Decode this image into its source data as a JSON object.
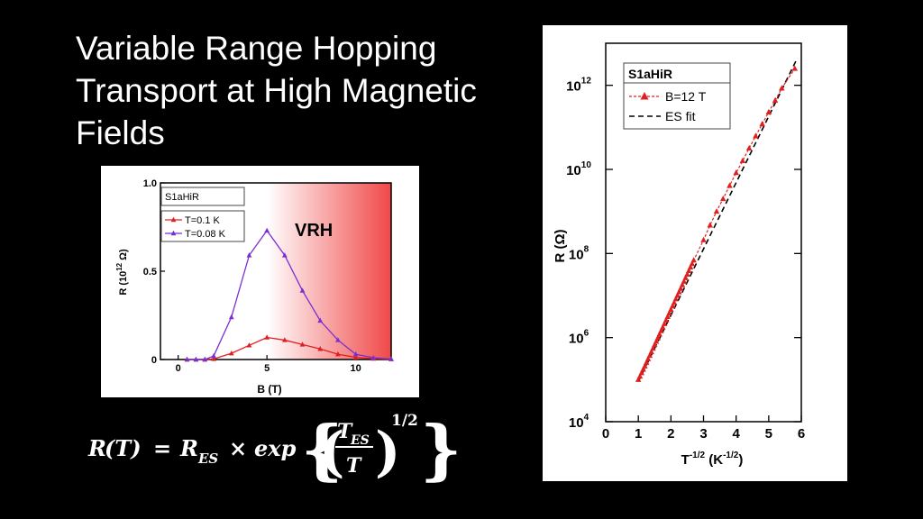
{
  "slide": {
    "title_lines": [
      "Variable Range Hopping",
      "Transport at High Magnetic",
      "Fields"
    ]
  },
  "formula": {
    "lhs_R": "R",
    "lhs_T": "(T)",
    "equals": "=",
    "R_ES": "R",
    "ES_sub": "ES",
    "times": "×",
    "exp": "exp",
    "T_num": "T",
    "T_num_sub": "ES",
    "T_den": "T",
    "exponent": "1/2",
    "lbrace": "{",
    "rbrace": "}",
    "lparen": "(",
    "rparen": ")"
  },
  "colors": {
    "red_series": "#e02020",
    "purple_series": "#7b2fd0",
    "vrh_shade": "#f04848",
    "fit_line": "#000000"
  },
  "chart_data": [
    {
      "type": "line",
      "sample_label": "S1aHiR",
      "annotation": "VRH",
      "xlabel": "B (T)",
      "ylabel": "R (10^12 Ω)",
      "ylabel_parts": {
        "base": "R (10",
        "exp": "12",
        "unit": " Ω)"
      },
      "xlim": [
        -1,
        12
      ],
      "ylim": [
        0,
        1.0
      ],
      "xticks": [
        0,
        5,
        10
      ],
      "xtick_labels": [
        "0",
        "5",
        "10"
      ],
      "yticks": [
        0,
        0.5,
        1.0
      ],
      "ytick_labels": [
        "0",
        "0.5",
        "1.0"
      ],
      "legend_position": "top-left",
      "shaded_region": {
        "from": 5,
        "to": 12,
        "gradient": "white-to-red"
      },
      "series": [
        {
          "name": "T=0.1 K",
          "marker": "triangle",
          "x": [
            0.5,
            1,
            1.5,
            2,
            3,
            4,
            5,
            6,
            7,
            8,
            9,
            10,
            11,
            12
          ],
          "y": [
            0,
            0,
            0,
            0.003,
            0.035,
            0.08,
            0.125,
            0.11,
            0.085,
            0.06,
            0.03,
            0.012,
            0.005,
            0.002
          ]
        },
        {
          "name": "T=0.08 K",
          "marker": "triangle",
          "x": [
            0.5,
            1,
            1.5,
            2,
            3,
            4,
            5,
            6,
            7,
            8,
            9,
            10,
            11,
            12
          ],
          "y": [
            0,
            0,
            0,
            0.02,
            0.24,
            0.59,
            0.73,
            0.59,
            0.39,
            0.22,
            0.11,
            0.03,
            0.01,
            0.003
          ]
        }
      ]
    },
    {
      "type": "scatter",
      "sample_label": "S1aHiR",
      "xlabel": "T^-1/2 (K^-1/2)",
      "xlabel_parts": {
        "T": "T",
        "texp": "-1/2",
        "mid": " (K",
        "kexp": "-1/2",
        "end": ")"
      },
      "ylabel": "R (Ω)",
      "y_scale": "log",
      "xlim": [
        0,
        6
      ],
      "ylim": [
        10000,
        10000000000000
      ],
      "xticks": [
        0,
        1,
        2,
        3,
        4,
        5,
        6
      ],
      "xtick_labels": [
        "0",
        "1",
        "2",
        "3",
        "4",
        "5",
        "6"
      ],
      "yticks": [
        10000,
        1000000,
        100000000,
        10000000000,
        1000000000000
      ],
      "ytick_base": "10",
      "ytick_exps": [
        "4",
        "6",
        "8",
        "10",
        "12"
      ],
      "legend_position": "top-left",
      "series": [
        {
          "name": "B=12 T",
          "marker": "triangle",
          "x": [
            1.0,
            1.05,
            1.1,
            1.15,
            1.2,
            1.25,
            1.3,
            1.35,
            1.4,
            1.45,
            1.5,
            1.55,
            1.6,
            1.65,
            1.7,
            1.75,
            1.8,
            1.85,
            1.9,
            1.95,
            2.0,
            2.05,
            2.1,
            2.15,
            2.2,
            2.25,
            2.3,
            2.35,
            2.4,
            2.45,
            2.5,
            2.55,
            2.6,
            2.65,
            2.7,
            3.0,
            3.2,
            3.4,
            3.6,
            3.8,
            4.0,
            4.2,
            4.4,
            4.6,
            4.8,
            5.0,
            5.2,
            5.4,
            5.8
          ],
          "y": [
            100000,
            120000,
            145000,
            175000,
            210000,
            255000,
            310000,
            375000,
            455000,
            550000,
            670000,
            810000,
            985000,
            1200000,
            1450000,
            1760000,
            2130000,
            2590000,
            3140000,
            3810000,
            4620000,
            5600000,
            6800000,
            8250000,
            10000000,
            12100000,
            14700000,
            17900000,
            21700000,
            26300000,
            31900000,
            38800000,
            47000000,
            57000000,
            69000000,
            210000000,
            470000000,
            1000000000,
            2000000000,
            4100000000,
            8300000000,
            16000000000,
            32000000000,
            62000000000,
            120000000000,
            230000000000,
            440000000000,
            850000000000,
            2500000000000
          ]
        },
        {
          "name": "ES fit",
          "style": "dashed",
          "x": [
            1.0,
            5.85
          ],
          "y": [
            90000,
            4000000000000
          ]
        }
      ]
    }
  ]
}
